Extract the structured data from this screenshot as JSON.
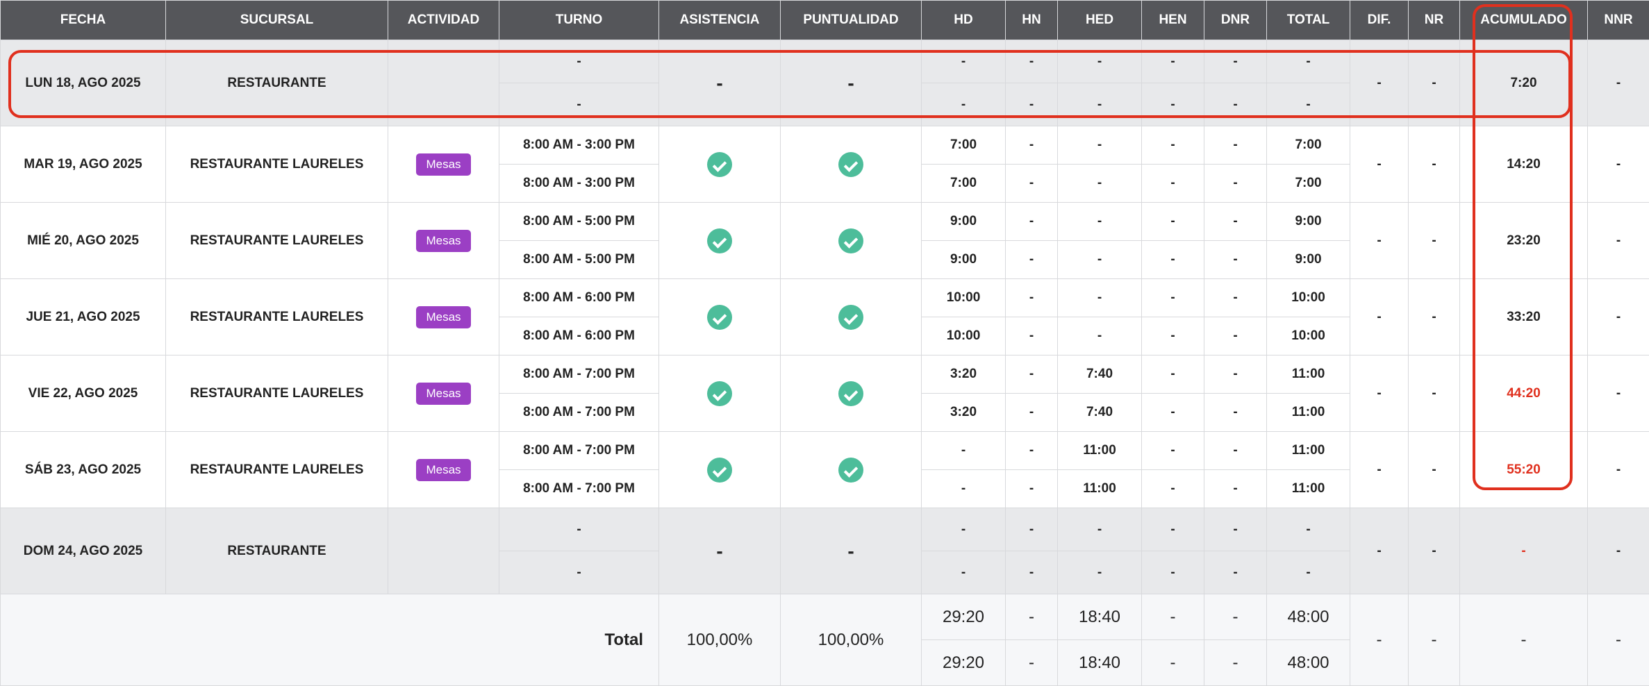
{
  "headers": {
    "fecha": "FECHA",
    "sucursal": "SUCURSAL",
    "actividad": "ACTIVIDAD",
    "turno": "TURNO",
    "asistencia": "ASISTENCIA",
    "puntualidad": "PUNTUALIDAD",
    "hd": "HD",
    "hn": "HN",
    "hed": "HED",
    "hen": "HEN",
    "dnr": "DNR",
    "total": "TOTAL",
    "dif": "DIF.",
    "nr": "NR",
    "acumulado": "ACUMULADO",
    "nnr": "NNR"
  },
  "rows": [
    {
      "fecha": "LUN 18, AGO 2025",
      "sucursal": "RESTAURANTE",
      "actividad": "",
      "turno1": "-",
      "turno2": "-",
      "asistencia": "-",
      "puntualidad": "-",
      "hd1": "-",
      "hd2": "-",
      "hn1": "-",
      "hn2": "-",
      "hed1": "-",
      "hed2": "-",
      "hen1": "-",
      "hen2": "-",
      "dnr1": "-",
      "dnr2": "-",
      "total1": "-",
      "total2": "-",
      "dif": "-",
      "nr": "-",
      "acumulado": "7:20",
      "nnr": "-"
    },
    {
      "fecha": "MAR 19, AGO 2025",
      "sucursal": "RESTAURANTE LAURELES",
      "actividad": "Mesas",
      "turno1": "8:00 AM - 3:00 PM",
      "turno2": "8:00 AM - 3:00 PM",
      "hd1": "7:00",
      "hd2": "7:00",
      "hn1": "-",
      "hn2": "-",
      "hed1": "-",
      "hed2": "-",
      "hen1": "-",
      "hen2": "-",
      "dnr1": "-",
      "dnr2": "-",
      "total1": "7:00",
      "total2": "7:00",
      "dif": "-",
      "nr": "-",
      "acumulado": "14:20",
      "nnr": "-"
    },
    {
      "fecha": "MIÉ 20, AGO 2025",
      "sucursal": "RESTAURANTE LAURELES",
      "actividad": "Mesas",
      "turno1": "8:00 AM - 5:00 PM",
      "turno2": "8:00 AM - 5:00 PM",
      "hd1": "9:00",
      "hd2": "9:00",
      "hn1": "-",
      "hn2": "-",
      "hed1": "-",
      "hed2": "-",
      "hen1": "-",
      "hen2": "-",
      "dnr1": "-",
      "dnr2": "-",
      "total1": "9:00",
      "total2": "9:00",
      "dif": "-",
      "nr": "-",
      "acumulado": "23:20",
      "nnr": "-"
    },
    {
      "fecha": "JUE 21, AGO 2025",
      "sucursal": "RESTAURANTE LAURELES",
      "actividad": "Mesas",
      "turno1": "8:00 AM - 6:00 PM",
      "turno2": "8:00 AM - 6:00 PM",
      "hd1": "10:00",
      "hd2": "10:00",
      "hn1": "-",
      "hn2": "-",
      "hed1": "-",
      "hed2": "-",
      "hen1": "-",
      "hen2": "-",
      "dnr1": "-",
      "dnr2": "-",
      "total1": "10:00",
      "total2": "10:00",
      "dif": "-",
      "nr": "-",
      "acumulado": "33:20",
      "nnr": "-"
    },
    {
      "fecha": "VIE 22, AGO 2025",
      "sucursal": "RESTAURANTE LAURELES",
      "actividad": "Mesas",
      "turno1": "8:00 AM - 7:00 PM",
      "turno2": "8:00 AM - 7:00 PM",
      "hd1": "3:20",
      "hd2": "3:20",
      "hn1": "-",
      "hn2": "-",
      "hed1": "7:40",
      "hed2": "7:40",
      "hen1": "-",
      "hen2": "-",
      "dnr1": "-",
      "dnr2": "-",
      "total1": "11:00",
      "total2": "11:00",
      "dif": "-",
      "nr": "-",
      "acumulado": "44:20",
      "nnr": "-"
    },
    {
      "fecha": "SÁB 23, AGO 2025",
      "sucursal": "RESTAURANTE LAURELES",
      "actividad": "Mesas",
      "turno1": "8:00 AM - 7:00 PM",
      "turno2": "8:00 AM - 7:00 PM",
      "hd1": "-",
      "hd2": "-",
      "hn1": "-",
      "hn2": "-",
      "hed1": "11:00",
      "hed2": "11:00",
      "hen1": "-",
      "hen2": "-",
      "dnr1": "-",
      "dnr2": "-",
      "total1": "11:00",
      "total2": "11:00",
      "dif": "-",
      "nr": "-",
      "acumulado": "55:20",
      "nnr": "-"
    },
    {
      "fecha": "DOM 24, AGO 2025",
      "sucursal": "RESTAURANTE",
      "actividad": "",
      "turno1": "-",
      "turno2": "-",
      "asistencia": "-",
      "puntualidad": "-",
      "hd1": "-",
      "hd2": "-",
      "hn1": "-",
      "hn2": "-",
      "hed1": "-",
      "hed2": "-",
      "hen1": "-",
      "hen2": "-",
      "dnr1": "-",
      "dnr2": "-",
      "total1": "-",
      "total2": "-",
      "dif": "-",
      "nr": "-",
      "acumulado": "-",
      "nnr": "-"
    }
  ],
  "totals": {
    "label": "Total",
    "asistencia": "100,00%",
    "puntualidad": "100,00%",
    "hd1": "29:20",
    "hd2": "29:20",
    "hn1": "-",
    "hn2": "-",
    "hed1": "18:40",
    "hed2": "18:40",
    "hen1": "-",
    "hen2": "-",
    "dnr1": "-",
    "dnr2": "-",
    "total1": "48:00",
    "total2": "48:00",
    "dif": "-",
    "nr": "-",
    "acumulado": "-",
    "nnr": "-"
  },
  "icons": {
    "attendance": "check-circle-icon",
    "punctuality": "check-circle-icon"
  },
  "colors": {
    "header_bg": "#55565a",
    "badge": "#9b3fc4",
    "check": "#4dbd9a",
    "highlight": "#e0301e",
    "gray_row": "#e8e9eb"
  }
}
